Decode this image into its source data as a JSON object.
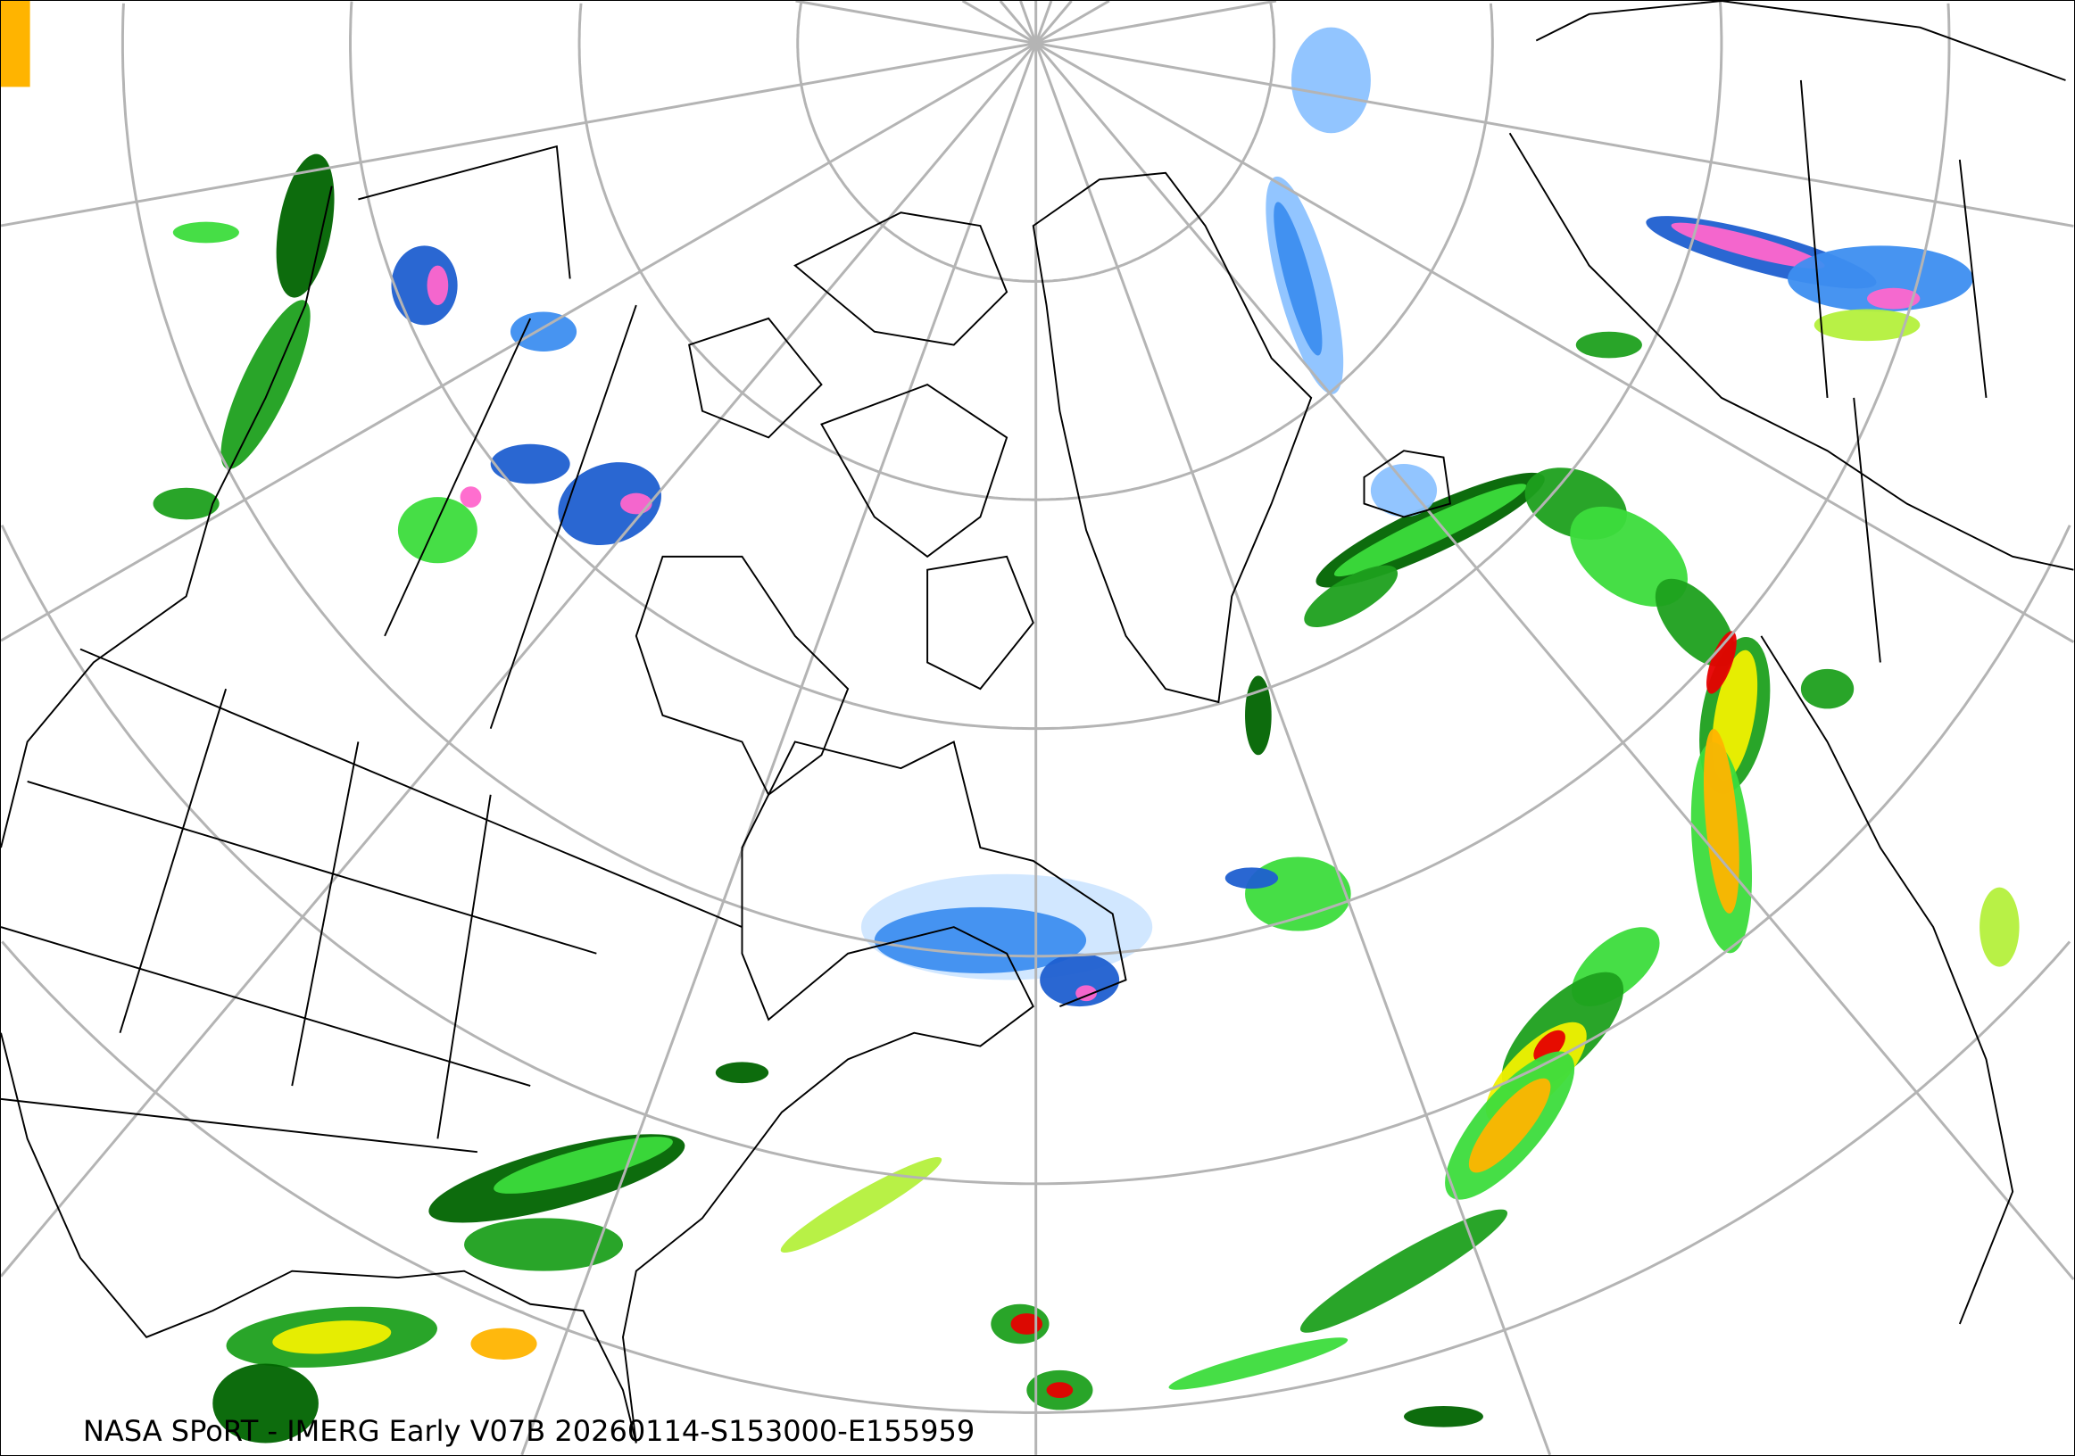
{
  "map": {
    "caption": "NASA SPoRT - IMERG Early V07B 20260114-S153000-E155959",
    "projection": "north-polar-stereographic",
    "layers": [
      "graticule",
      "coastlines",
      "political-boundaries",
      "precipitation-rate"
    ],
    "colors": {
      "graticule": "#b4b4b4",
      "coastline": "#000000",
      "precip_scale": [
        "#cfe6ff",
        "#8cc2ff",
        "#3d8ef0",
        "#1f5fd0",
        "#ff66cc",
        "#006400",
        "#1ea01e",
        "#3cdc3c",
        "#b4f03c",
        "#f0f000",
        "#ffb400",
        "#ff6400",
        "#e60000"
      ]
    }
  }
}
